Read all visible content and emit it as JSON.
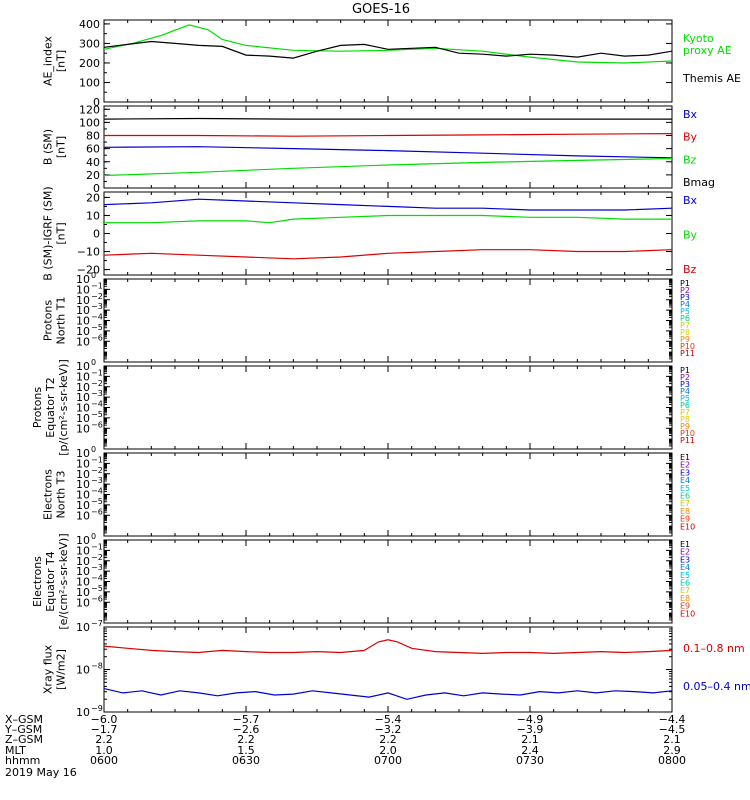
{
  "chart_data": {
    "type": "line",
    "title": "GOES-16",
    "colors": {
      "black": "#000000",
      "green": "#00dd00",
      "blue": "#0000cc",
      "red": "#dd0000"
    },
    "panels": [
      {
        "id": "ae",
        "ylabel": [
          "AE_index",
          "[nT]"
        ],
        "yticks": [
          {
            "v": 0,
            "label": "0"
          },
          {
            "v": 100,
            "label": "100"
          },
          {
            "v": 200,
            "label": "200"
          },
          {
            "v": 300,
            "label": "300"
          },
          {
            "v": 400,
            "label": "400"
          }
        ],
        "ylim": [
          0,
          420
        ],
        "log": false,
        "series": [
          {
            "name": "Kyoto proxy AE",
            "legend_lines": [
              "Kyoto",
              "proxy AE"
            ],
            "color": "green",
            "x": [
              0,
              6,
              12,
              18,
              22,
              25,
              30,
              40,
              50,
              60,
              70,
              80,
              90,
              100,
              110,
              120
            ],
            "y": [
              270,
              300,
              340,
              395,
              370,
              320,
              290,
              265,
              260,
              265,
              275,
              260,
              230,
              205,
              200,
              210
            ]
          },
          {
            "name": "Themis AE",
            "legend_lines": [
              "Themis AE"
            ],
            "color": "black",
            "x": [
              0,
              5,
              10,
              15,
              20,
              25,
              30,
              35,
              40,
              45,
              50,
              55,
              60,
              65,
              70,
              75,
              80,
              85,
              90,
              95,
              100,
              105,
              110,
              115,
              120
            ],
            "y": [
              280,
              295,
              310,
              300,
              290,
              285,
              240,
              235,
              225,
              260,
              290,
              295,
              270,
              275,
              280,
              250,
              245,
              235,
              245,
              240,
              230,
              250,
              235,
              240,
              260
            ]
          }
        ]
      },
      {
        "id": "bsm",
        "ylabel": [
          "B (SM)",
          "[nT]"
        ],
        "yticks": [
          {
            "v": 0,
            "label": "0"
          },
          {
            "v": 20,
            "label": "20"
          },
          {
            "v": 40,
            "label": "40"
          },
          {
            "v": 60,
            "label": "60"
          },
          {
            "v": 80,
            "label": "80"
          },
          {
            "v": 100,
            "label": "100"
          },
          {
            "v": 120,
            "label": "120"
          }
        ],
        "ylim": [
          0,
          125
        ],
        "log": false,
        "series": [
          {
            "name": "Bx",
            "legend_lines": [
              "Bx"
            ],
            "color": "blue",
            "x": [
              0,
              20,
              40,
              60,
              80,
              100,
              120
            ],
            "y": [
              62,
              63,
              60,
              57,
              53,
              49,
              46
            ]
          },
          {
            "name": "By",
            "legend_lines": [
              "By"
            ],
            "color": "red",
            "x": [
              0,
              20,
              40,
              60,
              80,
              100,
              120
            ],
            "y": [
              80,
              80,
              79,
              80,
              81,
              82,
              83
            ]
          },
          {
            "name": "Bz",
            "legend_lines": [
              "Bz"
            ],
            "color": "green",
            "x": [
              0,
              20,
              40,
              60,
              80,
              100,
              120
            ],
            "y": [
              19,
              24,
              30,
              35,
              39,
              42,
              45
            ]
          },
          {
            "name": "Bmag",
            "legend_lines": [
              "Bmag"
            ],
            "color": "black",
            "x": [
              0,
              20,
              40,
              60,
              80,
              100,
              120
            ],
            "y": [
              105,
              106,
              105,
              105,
              105,
              105,
              105
            ]
          }
        ]
      },
      {
        "id": "bigrf",
        "ylabel": [
          "B (SM)-IGRF (SM)",
          "[nT]"
        ],
        "yticks": [
          {
            "v": -20,
            "label": "−20"
          },
          {
            "v": -10,
            "label": "−10"
          },
          {
            "v": 0,
            "label": "0"
          },
          {
            "v": 10,
            "label": "10"
          },
          {
            "v": 20,
            "label": "20"
          }
        ],
        "ylim": [
          -23,
          23
        ],
        "log": false,
        "series": [
          {
            "name": "Bx",
            "legend_lines": [
              "Bx"
            ],
            "color": "blue",
            "x": [
              0,
              10,
              20,
              30,
              40,
              50,
              60,
              70,
              80,
              90,
              100,
              110,
              120
            ],
            "y": [
              16,
              17,
              19,
              18,
              17,
              16,
              15,
              14,
              14,
              13,
              13,
              13,
              14
            ]
          },
          {
            "name": "By",
            "legend_lines": [
              "By"
            ],
            "color": "green",
            "x": [
              0,
              10,
              20,
              30,
              35,
              40,
              50,
              60,
              70,
              80,
              90,
              100,
              110,
              120
            ],
            "y": [
              6,
              6,
              7,
              7,
              6,
              8,
              9,
              10,
              10,
              10,
              9,
              9,
              8,
              8
            ]
          },
          {
            "name": "Bz",
            "legend_lines": [
              "Bz"
            ],
            "color": "red",
            "x": [
              0,
              10,
              20,
              30,
              40,
              50,
              60,
              70,
              80,
              90,
              100,
              110,
              120
            ],
            "y": [
              -12,
              -11,
              -12,
              -13,
              -14,
              -13,
              -11,
              -10,
              -9,
              -9,
              -10,
              -10,
              -9
            ]
          }
        ]
      },
      {
        "id": "p1",
        "ylabel": [
          "Protons",
          "North T1"
        ],
        "log": true,
        "ylim": [
          -8,
          0
        ],
        "ytick_labels": [
          {
            "base": "10",
            "exp": "0"
          },
          {
            "base": "10",
            "exp": "−1"
          },
          {
            "base": "10",
            "exp": "−2"
          },
          {
            "base": "10",
            "exp": "−3"
          },
          {
            "base": "10",
            "exp": "−4"
          },
          {
            "base": "10",
            "exp": "−5"
          },
          {
            "base": "10",
            "exp": "−6"
          }
        ],
        "legend": [
          {
            "label": "P1",
            "color": "#000000"
          },
          {
            "label": "P2",
            "color": "#8800aa"
          },
          {
            "label": "P3",
            "color": "#0000dd"
          },
          {
            "label": "P4",
            "color": "#0077dd"
          },
          {
            "label": "P5",
            "color": "#00bbdd"
          },
          {
            "label": "P6",
            "color": "#00cc99"
          },
          {
            "label": "P7",
            "color": "#cccc00"
          },
          {
            "label": "P8",
            "color": "#ddcc00"
          },
          {
            "label": "P9",
            "color": "#ee8800"
          },
          {
            "label": "P10",
            "color": "#ee3300"
          },
          {
            "label": "P11",
            "color": "#cc0000"
          }
        ]
      },
      {
        "id": "p2",
        "ylabel": [
          "Protons",
          "Equator T2",
          "[p/(cm²-s-sr-keV)]"
        ],
        "log": true,
        "ylim": [
          -8,
          0
        ],
        "ytick_labels": [
          {
            "base": "10",
            "exp": "0"
          },
          {
            "base": "10",
            "exp": "−1"
          },
          {
            "base": "10",
            "exp": "−2"
          },
          {
            "base": "10",
            "exp": "−3"
          },
          {
            "base": "10",
            "exp": "−4"
          },
          {
            "base": "10",
            "exp": "−5"
          },
          {
            "base": "10",
            "exp": "−6"
          }
        ],
        "legend": [
          {
            "label": "P1",
            "color": "#000000"
          },
          {
            "label": "P2",
            "color": "#8800aa"
          },
          {
            "label": "P3",
            "color": "#0000dd"
          },
          {
            "label": "P4",
            "color": "#0077dd"
          },
          {
            "label": "P5",
            "color": "#00bbdd"
          },
          {
            "label": "P6",
            "color": "#00cc99"
          },
          {
            "label": "P7",
            "color": "#cccc00"
          },
          {
            "label": "P8",
            "color": "#ddcc00"
          },
          {
            "label": "P9",
            "color": "#ee8800"
          },
          {
            "label": "P10",
            "color": "#ee3300"
          },
          {
            "label": "P11",
            "color": "#cc0000"
          }
        ]
      },
      {
        "id": "e1",
        "ylabel": [
          "Electrons",
          "North T3"
        ],
        "log": true,
        "ylim": [
          -8,
          0
        ],
        "ytick_labels": [
          {
            "base": "10",
            "exp": "0"
          },
          {
            "base": "10",
            "exp": "−1"
          },
          {
            "base": "10",
            "exp": "−2"
          },
          {
            "base": "10",
            "exp": "−3"
          },
          {
            "base": "10",
            "exp": "−4"
          },
          {
            "base": "10",
            "exp": "−5"
          },
          {
            "base": "10",
            "exp": "−6"
          }
        ],
        "legend": [
          {
            "label": "E1",
            "color": "#000000"
          },
          {
            "label": "E2",
            "color": "#8800aa"
          },
          {
            "label": "E3",
            "color": "#0000dd"
          },
          {
            "label": "E4",
            "color": "#0077dd"
          },
          {
            "label": "E5",
            "color": "#00bbdd"
          },
          {
            "label": "E6",
            "color": "#00cc99"
          },
          {
            "label": "E7",
            "color": "#cccc00"
          },
          {
            "label": "E8",
            "color": "#ee8800"
          },
          {
            "label": "E9",
            "color": "#ee3300"
          },
          {
            "label": "E10",
            "color": "#cc0000"
          }
        ]
      },
      {
        "id": "e2",
        "ylabel": [
          "Electrons",
          "Equator T4",
          "[e/(cm²-s-sr-keV)]"
        ],
        "log": true,
        "ylim": [
          -8,
          0
        ],
        "ytick_labels": [
          {
            "base": "10",
            "exp": "0"
          },
          {
            "base": "10",
            "exp": "−1"
          },
          {
            "base": "10",
            "exp": "−2"
          },
          {
            "base": "10",
            "exp": "−3"
          },
          {
            "base": "10",
            "exp": "−4"
          },
          {
            "base": "10",
            "exp": "−5"
          },
          {
            "base": "10",
            "exp": "−6"
          }
        ],
        "legend": [
          {
            "label": "E1",
            "color": "#000000"
          },
          {
            "label": "E2",
            "color": "#8800aa"
          },
          {
            "label": "E3",
            "color": "#0000dd"
          },
          {
            "label": "E4",
            "color": "#0077dd"
          },
          {
            "label": "E5",
            "color": "#00bbdd"
          },
          {
            "label": "E6",
            "color": "#00cc99"
          },
          {
            "label": "E7",
            "color": "#cccc00"
          },
          {
            "label": "E8",
            "color": "#ee8800"
          },
          {
            "label": "E9",
            "color": "#ee3300"
          },
          {
            "label": "E10",
            "color": "#cc0000"
          }
        ]
      },
      {
        "id": "xray",
        "ylabel": [
          "Xray flux",
          "[W/m2]"
        ],
        "log": true,
        "ylim": [
          -9,
          -7
        ],
        "ytick_labels": [
          {
            "base": "10",
            "exp": "−7"
          },
          {
            "base": "10",
            "exp": "−8"
          },
          {
            "base": "10",
            "exp": "−9"
          }
        ],
        "series": [
          {
            "name": "0.1–0.8 nm",
            "legend_lines": [
              "0.1–0.8 nm"
            ],
            "color": "red",
            "x": [
              0,
              5,
              10,
              15,
              20,
              25,
              30,
              35,
              40,
              45,
              50,
              55,
              58,
              60,
              62,
              65,
              70,
              75,
              80,
              85,
              90,
              95,
              100,
              105,
              110,
              115,
              120
            ],
            "y": [
              -7.45,
              -7.5,
              -7.55,
              -7.58,
              -7.6,
              -7.55,
              -7.58,
              -7.6,
              -7.6,
              -7.58,
              -7.6,
              -7.55,
              -7.35,
              -7.3,
              -7.35,
              -7.5,
              -7.58,
              -7.6,
              -7.62,
              -7.6,
              -7.6,
              -7.62,
              -7.6,
              -7.58,
              -7.6,
              -7.58,
              -7.55
            ]
          },
          {
            "name": "0.05–0.4 nm",
            "legend_lines": [
              "0.05–0.4 nm"
            ],
            "color": "blue",
            "x": [
              0,
              4,
              8,
              12,
              16,
              20,
              24,
              28,
              32,
              36,
              40,
              44,
              48,
              52,
              56,
              60,
              64,
              68,
              72,
              76,
              80,
              84,
              88,
              92,
              96,
              100,
              104,
              108,
              112,
              116,
              120
            ],
            "y": [
              -8.45,
              -8.55,
              -8.5,
              -8.6,
              -8.5,
              -8.55,
              -8.62,
              -8.55,
              -8.52,
              -8.6,
              -8.58,
              -8.5,
              -8.55,
              -8.6,
              -8.65,
              -8.55,
              -8.7,
              -8.6,
              -8.55,
              -8.62,
              -8.55,
              -8.58,
              -8.6,
              -8.52,
              -8.55,
              -8.5,
              -8.55,
              -8.5,
              -8.52,
              -8.55,
              -8.5
            ]
          }
        ]
      }
    ],
    "xlim": [
      0,
      120
    ],
    "xticks": [
      0,
      30,
      60,
      90,
      120
    ],
    "x_rows": [
      {
        "label": "X–GSM",
        "values": [
          "−6.0",
          "−5.7",
          "−5.4",
          "−4.9",
          "−4.4"
        ]
      },
      {
        "label": "Y–GSM",
        "values": [
          "−1.7",
          "−2.6",
          "−3.2",
          "−3.9",
          "−4.5"
        ]
      },
      {
        "label": "Z–GSM",
        "values": [
          "2.2",
          "2.2",
          "2.2",
          "2.1",
          "2.1"
        ]
      },
      {
        "label": "MLT",
        "values": [
          "1.0",
          "1.5",
          "2.0",
          "2.4",
          "2.9"
        ]
      },
      {
        "label": "hhmm",
        "values": [
          "0600",
          "0630",
          "0700",
          "0730",
          "0800"
        ]
      }
    ],
    "date": "2019 May 16"
  }
}
